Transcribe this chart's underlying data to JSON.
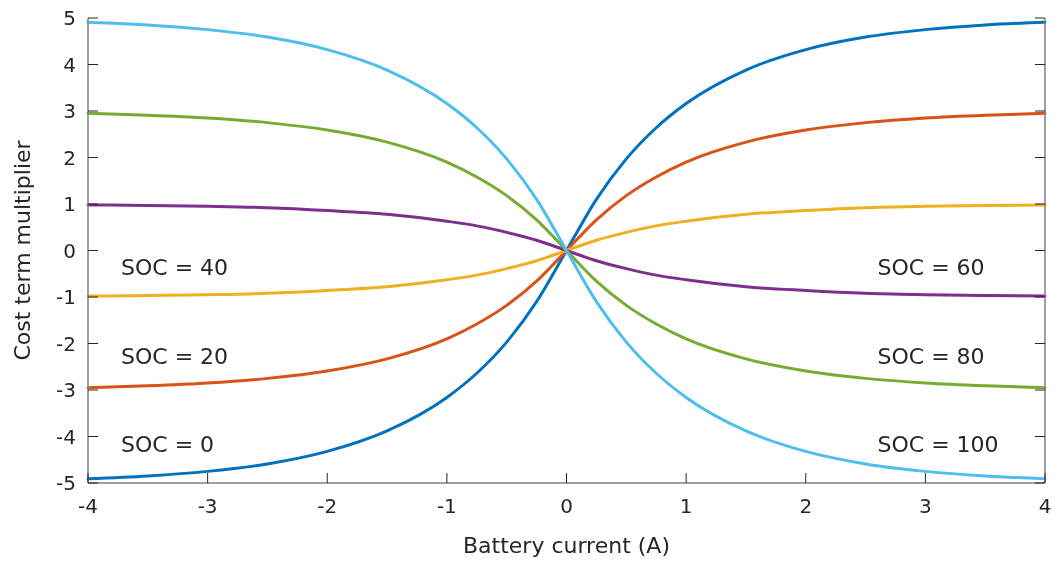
{
  "chart_data": {
    "type": "line",
    "xlabel": "Battery current (A)",
    "ylabel": "Cost term multiplier",
    "xlim": [
      -4,
      4
    ],
    "ylim": [
      -5,
      5
    ],
    "xticks": [
      -4,
      -3,
      -2,
      -1,
      0,
      1,
      2,
      3,
      4
    ],
    "yticks": [
      -5,
      -4,
      -3,
      -2,
      -1,
      0,
      1,
      2,
      3,
      4,
      5
    ],
    "grid": false,
    "marker": "none",
    "line_style": "solid",
    "x": [
      -4,
      -3.5,
      -3,
      -2.5,
      -2,
      -1.5,
      -1,
      -0.75,
      -0.5,
      -0.25,
      0,
      0.25,
      0.5,
      0.75,
      1,
      1.5,
      2,
      2.5,
      3,
      3.5,
      4
    ],
    "series": [
      {
        "color": "#0072bd",
        "values": [
          -4.91,
          -4.85,
          -4.75,
          -4.59,
          -4.32,
          -3.88,
          -3.16,
          -2.64,
          -1.97,
          -1.1,
          0,
          1.1,
          1.97,
          2.64,
          3.16,
          3.88,
          4.32,
          4.59,
          4.75,
          4.85,
          4.91
        ]
      },
      {
        "color": "#d95319",
        "values": [
          -2.95,
          -2.91,
          -2.85,
          -2.75,
          -2.59,
          -2.33,
          -1.9,
          -1.58,
          -1.18,
          -0.66,
          0,
          0.66,
          1.18,
          1.58,
          1.9,
          2.33,
          2.59,
          2.75,
          2.85,
          2.91,
          2.95
        ]
      },
      {
        "color": "#edb120",
        "values": [
          -0.98,
          -0.97,
          -0.95,
          -0.92,
          -0.86,
          -0.78,
          -0.63,
          -0.53,
          -0.39,
          -0.22,
          0,
          0.22,
          0.39,
          0.53,
          0.63,
          0.78,
          0.86,
          0.92,
          0.95,
          0.97,
          0.98
        ]
      },
      {
        "color": "#7e2f8e",
        "values": [
          0.98,
          0.97,
          0.95,
          0.92,
          0.86,
          0.78,
          0.63,
          0.53,
          0.39,
          0.22,
          0,
          -0.22,
          -0.39,
          -0.53,
          -0.63,
          -0.78,
          -0.86,
          -0.92,
          -0.95,
          -0.97,
          -0.98
        ]
      },
      {
        "color": "#77ac30",
        "values": [
          2.95,
          2.91,
          2.85,
          2.75,
          2.59,
          2.33,
          1.9,
          1.58,
          1.18,
          0.66,
          0,
          -0.66,
          -1.18,
          -1.58,
          -1.9,
          -2.33,
          -2.59,
          -2.75,
          -2.85,
          -2.91,
          -2.95
        ]
      },
      {
        "color": "#4dbeee",
        "values": [
          4.91,
          4.85,
          4.75,
          4.59,
          4.32,
          3.88,
          3.16,
          2.64,
          1.97,
          1.1,
          0,
          -1.1,
          -1.97,
          -2.64,
          -3.16,
          -3.88,
          -4.32,
          -4.59,
          -4.75,
          -4.85,
          -4.91
        ]
      }
    ],
    "annotations": [
      "SOC = 40",
      "SOC = 20",
      "SOC = 0",
      "SOC = 60",
      "SOC = 80",
      "SOC = 100"
    ]
  }
}
